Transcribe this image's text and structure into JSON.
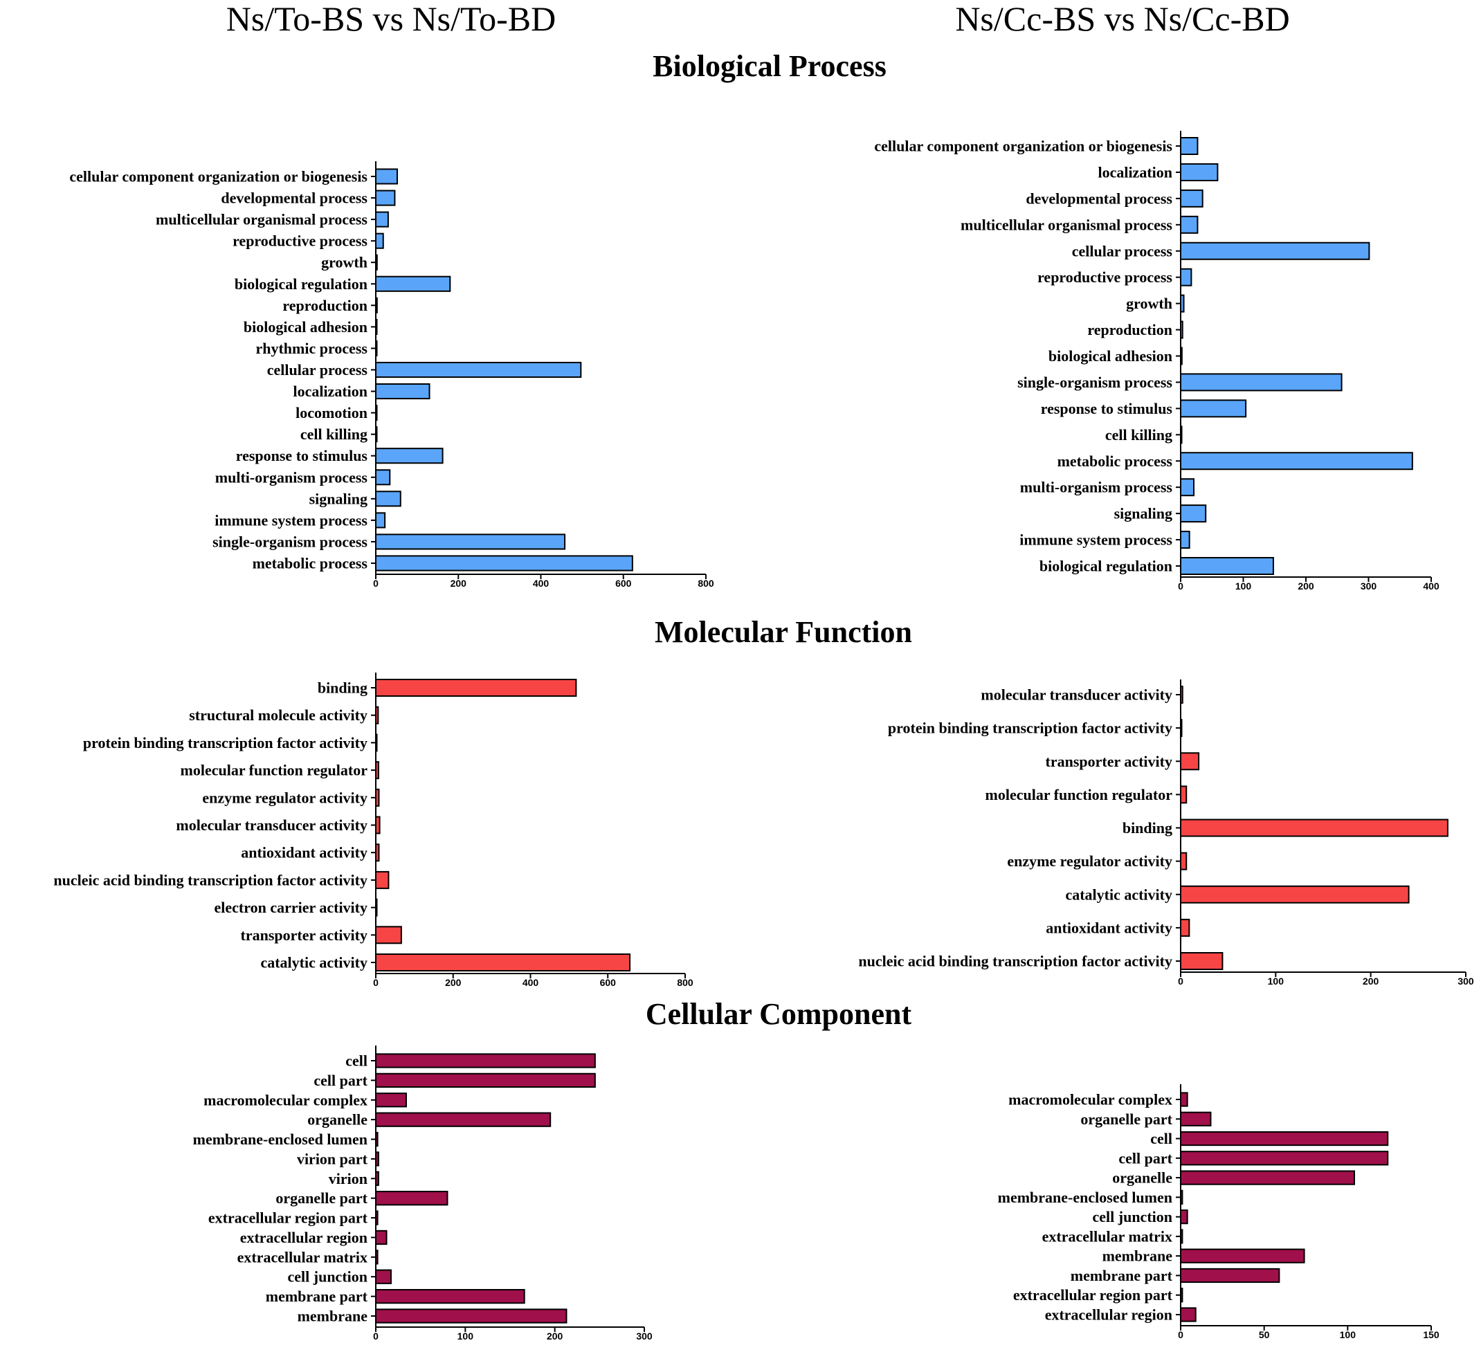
{
  "figure": {
    "column_titles": [
      "Ns/To-BS vs Ns/To-BD",
      "Ns/Cc-BS vs Ns/Cc-BD"
    ],
    "section_titles": [
      "Biological Process",
      "Molecular Function",
      "Cellular Component"
    ]
  },
  "colors": {
    "biological_process": "#5aa5f9",
    "molecular_function": "#f74545",
    "cellular_component": "#a0104b"
  },
  "chart_data": [
    {
      "type": "bar",
      "orientation": "horizontal",
      "section": "Biological Process",
      "comparison": "Ns/To-BS vs Ns/To-BD",
      "categories": [
        "cellular component organization or biogenesis",
        "developmental process",
        "multicellular organismal process",
        "reproductive process",
        "growth",
        "biological regulation",
        "reproduction",
        "biological adhesion",
        "rhythmic process",
        "cellular process",
        "localization",
        "locomotion",
        "cell killing",
        "response to stimulus",
        "multi-organism process",
        "signaling",
        "immune system process",
        "single-organism process",
        "metabolic process"
      ],
      "values": [
        52,
        46,
        30,
        18,
        3,
        180,
        3,
        2,
        1,
        497,
        130,
        2,
        2,
        162,
        34,
        60,
        22,
        458,
        622
      ],
      "xlim": [
        0,
        800
      ],
      "xticks": [
        "0",
        "200",
        "400",
        "600",
        "800"
      ],
      "color_key": "biological_process"
    },
    {
      "type": "bar",
      "orientation": "horizontal",
      "section": "Biological Process",
      "comparison": "Ns/Cc-BS vs Ns/Cc-BD",
      "categories": [
        "cellular component organization or biogenesis",
        "localization",
        "developmental process",
        "multicellular organismal process",
        "cellular process",
        "reproductive process",
        "growth",
        "reproduction",
        "biological adhesion",
        "single-organism process",
        "response to stimulus",
        "cell killing",
        "metabolic process",
        "multi-organism process",
        "signaling",
        "immune system process",
        "biological regulation"
      ],
      "values": [
        27,
        59,
        35,
        27,
        301,
        17,
        5,
        3,
        2,
        257,
        104,
        1,
        370,
        21,
        40,
        14,
        148
      ],
      "xlim": [
        0,
        400
      ],
      "xticks": [
        "0",
        "100",
        "200",
        "300",
        "400"
      ],
      "color_key": "biological_process"
    },
    {
      "type": "bar",
      "orientation": "horizontal",
      "section": "Molecular Function",
      "comparison": "Ns/To-BS vs Ns/To-BD",
      "categories": [
        "binding",
        "structural molecule activity",
        "protein binding transcription factor activity",
        "molecular function regulator",
        "enzyme regulator activity",
        "molecular transducer activity",
        "antioxidant activity",
        "nucleic acid binding transcription factor activity",
        "electron carrier activity",
        "transporter activity",
        "catalytic activity"
      ],
      "values": [
        518,
        6,
        2,
        7,
        8,
        10,
        8,
        33,
        1,
        66,
        657
      ],
      "xlim": [
        0,
        800
      ],
      "xticks": [
        "0",
        "200",
        "400",
        "600",
        "800"
      ],
      "color_key": "molecular_function"
    },
    {
      "type": "bar",
      "orientation": "horizontal",
      "section": "Molecular Function",
      "comparison": "Ns/Cc-BS vs Ns/Cc-BD",
      "categories": [
        "molecular transducer activity",
        "protein binding transcription factor activity",
        "transporter activity",
        "molecular function regulator",
        "binding",
        "enzyme regulator activity",
        "catalytic activity",
        "antioxidant activity",
        "nucleic acid binding transcription factor activity"
      ],
      "values": [
        2,
        1,
        19,
        6,
        281,
        6,
        240,
        9,
        44
      ],
      "xlim": [
        0,
        300
      ],
      "xticks": [
        "0",
        "100",
        "200",
        "300"
      ],
      "color_key": "molecular_function"
    },
    {
      "type": "bar",
      "orientation": "horizontal",
      "section": "Cellular Component",
      "comparison": "Ns/To-BS vs Ns/To-BD",
      "categories": [
        "cell",
        "cell part",
        "macromolecular complex",
        "organelle",
        "membrane-enclosed lumen",
        "virion part",
        "virion",
        "organelle part",
        "extracellular region part",
        "extracellular region",
        "extracellular matrix",
        "cell junction",
        "membrane part",
        "membrane"
      ],
      "values": [
        245,
        245,
        34,
        195,
        2,
        3,
        3,
        80,
        2,
        12,
        2,
        17,
        166,
        213
      ],
      "xlim": [
        0,
        300
      ],
      "xticks": [
        "0",
        "100",
        "200",
        "300"
      ],
      "color_key": "cellular_component"
    },
    {
      "type": "bar",
      "orientation": "horizontal",
      "section": "Cellular Component",
      "comparison": "Ns/Cc-BS vs Ns/Cc-BD",
      "categories": [
        "macromolecular complex",
        "organelle part",
        "cell",
        "cell part",
        "organelle",
        "membrane-enclosed lumen",
        "cell junction",
        "extracellular matrix",
        "membrane",
        "membrane part",
        "extracellular region part",
        "extracellular region"
      ],
      "values": [
        4,
        18,
        124,
        124,
        104,
        1,
        4,
        1,
        74,
        59,
        1,
        9
      ],
      "xlim": [
        0,
        150
      ],
      "xticks": [
        "0",
        "50",
        "100",
        "150"
      ],
      "color_key": "cellular_component"
    }
  ]
}
